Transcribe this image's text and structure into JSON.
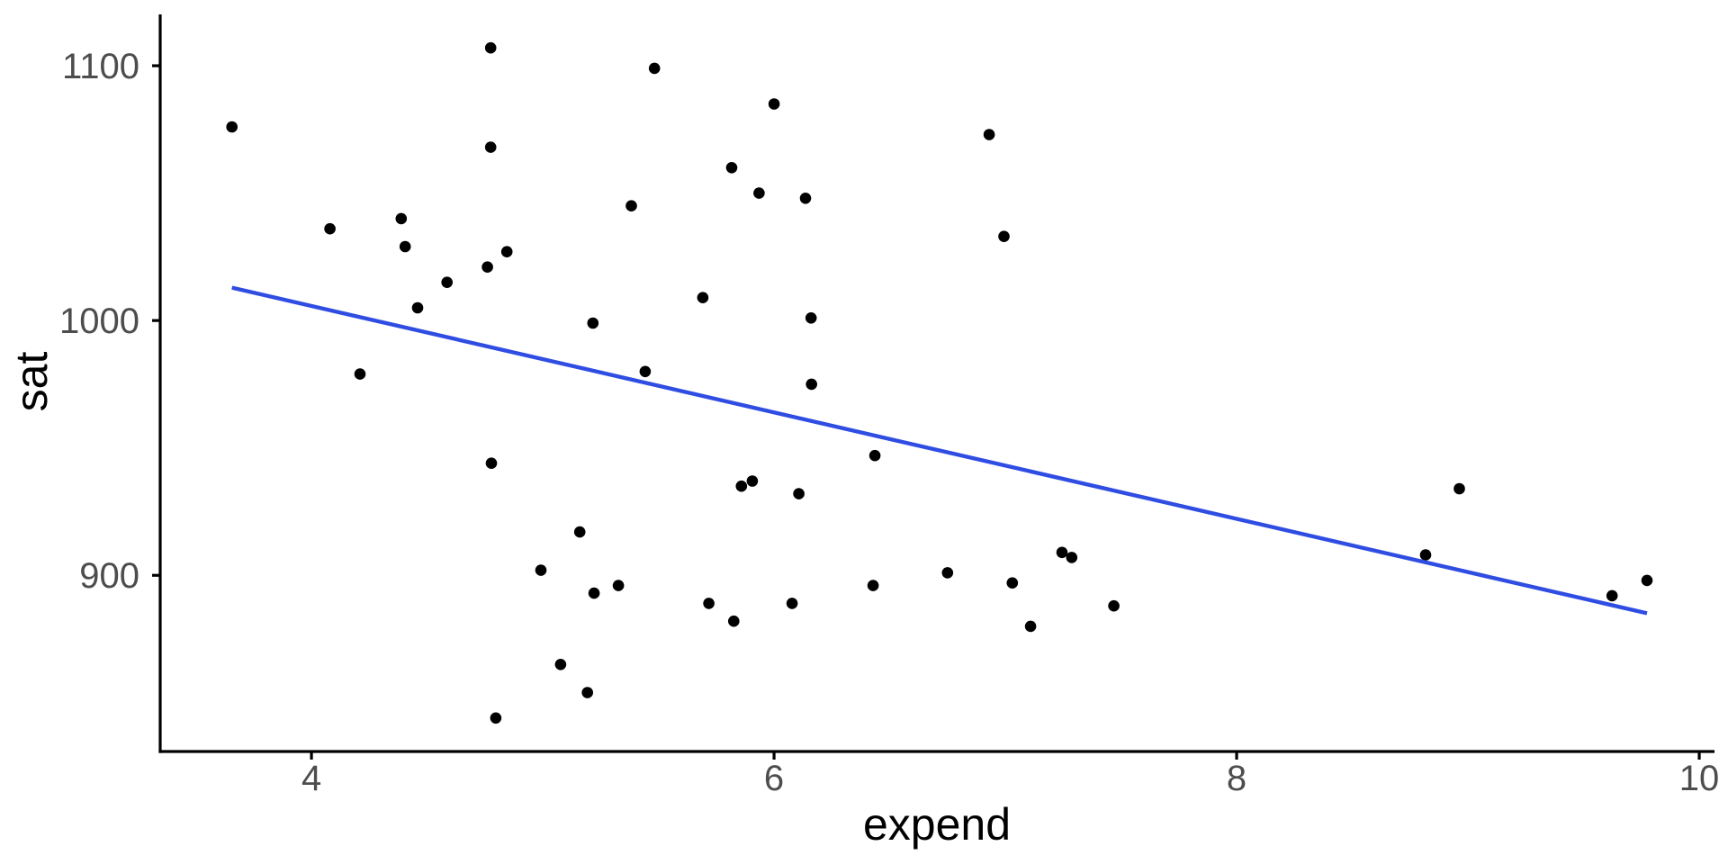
{
  "chart_data": {
    "type": "scatter",
    "title": "",
    "xlabel": "expend",
    "ylabel": "sat",
    "x_ticks": [
      4,
      6,
      8,
      10
    ],
    "y_ticks": [
      900,
      1000,
      1100
    ],
    "xlim": [
      3.346,
      10.066
    ],
    "ylim": [
      830.85,
      1120.15
    ],
    "grid": false,
    "legend": false,
    "background_color": "#FFFFFF",
    "point_color": "#000000",
    "axis_line_color": "#000000",
    "tick_label_color": "#4D4D4D",
    "axis_title_color": "#000000",
    "points": [
      [
        4.405,
        1029
      ],
      [
        8.963,
        934
      ],
      [
        4.778,
        944
      ],
      [
        4.459,
        1005
      ],
      [
        4.992,
        902
      ],
      [
        5.443,
        980
      ],
      [
        8.817,
        908
      ],
      [
        7.03,
        897
      ],
      [
        5.718,
        889
      ],
      [
        5.193,
        854
      ],
      [
        6.078,
        889
      ],
      [
        4.21,
        979
      ],
      [
        6.136,
        1048
      ],
      [
        5.826,
        882
      ],
      [
        5.483,
        1099
      ],
      [
        5.817,
        1060
      ],
      [
        5.217,
        999
      ],
      [
        4.761,
        1021
      ],
      [
        6.428,
        896
      ],
      [
        7.245,
        909
      ],
      [
        7.287,
        907
      ],
      [
        6.994,
        1033
      ],
      [
        6.0,
        1085
      ],
      [
        4.08,
        1036
      ],
      [
        5.383,
        1045
      ],
      [
        5.692,
        1009
      ],
      [
        5.935,
        1050
      ],
      [
        5.16,
        917
      ],
      [
        5.859,
        935
      ],
      [
        9.774,
        898
      ],
      [
        4.586,
        1015
      ],
      [
        9.623,
        892
      ],
      [
        5.077,
        865
      ],
      [
        4.775,
        1107
      ],
      [
        6.162,
        975
      ],
      [
        4.845,
        1027
      ],
      [
        6.436,
        947
      ],
      [
        7.109,
        880
      ],
      [
        7.469,
        888
      ],
      [
        4.797,
        844
      ],
      [
        4.775,
        1068
      ],
      [
        4.388,
        1040
      ],
      [
        5.222,
        893
      ],
      [
        3.656,
        1076
      ],
      [
        6.75,
        901
      ],
      [
        5.327,
        896
      ],
      [
        5.906,
        937
      ],
      [
        6.107,
        932
      ],
      [
        6.93,
        1073
      ],
      [
        6.16,
        1001
      ]
    ],
    "trend_line": {
      "type": "linear-fit",
      "color": "#2F4DE2",
      "x_start": 3.656,
      "y_start": 1012.9,
      "x_end": 9.774,
      "y_end": 885.1
    }
  }
}
